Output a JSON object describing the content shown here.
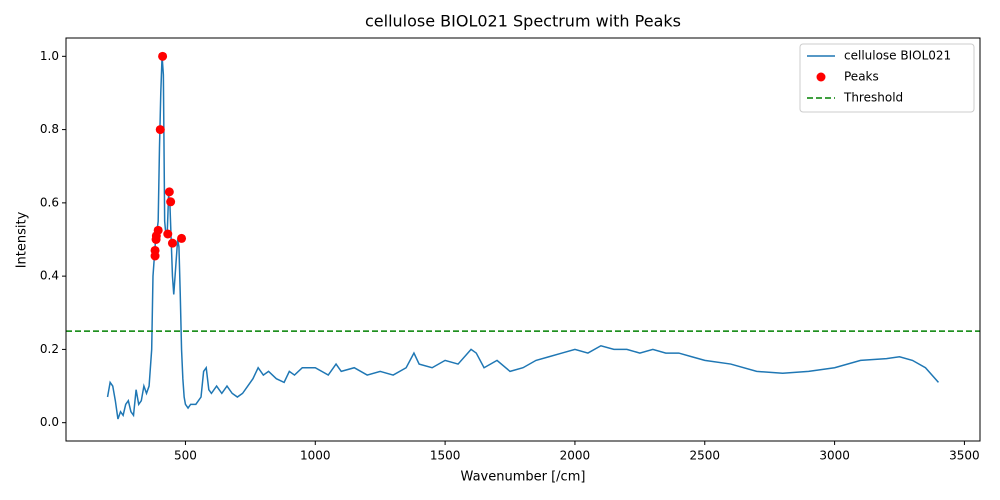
{
  "chart_data": {
    "type": "line",
    "title": "cellulose BIOL021 Spectrum with Peaks",
    "x_label": "Wavenumber [/cm]",
    "y_label": "Intensity",
    "xlim": [
      40,
      3560
    ],
    "ylim": [
      -0.05,
      1.05
    ],
    "xticks": [
      500,
      1000,
      1500,
      2000,
      2500,
      3000,
      3500
    ],
    "yticks": [
      {
        "value": 0,
        "label": "0.0"
      },
      0.2,
      0.4,
      0.6,
      0.8,
      {
        "value": 1,
        "label": "1.0"
      }
    ],
    "legend": "upper right",
    "series": [
      {
        "name": "cellulose BIOL021",
        "type": "line",
        "color": "#1f77b4",
        "x": [
          200,
          210,
          220,
          230,
          240,
          250,
          260,
          270,
          280,
          290,
          300,
          310,
          320,
          330,
          340,
          350,
          360,
          370,
          375,
          380,
          385,
          390,
          395,
          400,
          405,
          410,
          415,
          420,
          425,
          430,
          435,
          440,
          445,
          450,
          455,
          460,
          465,
          470,
          475,
          480,
          485,
          490,
          495,
          500,
          510,
          520,
          540,
          560,
          570,
          580,
          590,
          600,
          620,
          640,
          660,
          680,
          700,
          720,
          740,
          760,
          780,
          800,
          820,
          850,
          880,
          900,
          920,
          950,
          1000,
          1050,
          1080,
          1100,
          1150,
          1200,
          1250,
          1300,
          1350,
          1380,
          1400,
          1450,
          1500,
          1550,
          1600,
          1620,
          1650,
          1700,
          1750,
          1800,
          1850,
          1900,
          1950,
          2000,
          2050,
          2100,
          2150,
          2200,
          2250,
          2300,
          2350,
          2400,
          2450,
          2500,
          2600,
          2700,
          2800,
          2900,
          3000,
          3100,
          3200,
          3250,
          3300,
          3350,
          3400
        ],
        "values": [
          0.07,
          0.11,
          0.1,
          0.06,
          0.01,
          0.03,
          0.02,
          0.05,
          0.06,
          0.03,
          0.02,
          0.09,
          0.05,
          0.06,
          0.1,
          0.08,
          0.1,
          0.2,
          0.4,
          0.45,
          0.5,
          0.52,
          0.55,
          0.75,
          0.9,
          1.0,
          0.95,
          0.55,
          0.51,
          0.52,
          0.62,
          0.6,
          0.5,
          0.4,
          0.35,
          0.4,
          0.45,
          0.5,
          0.48,
          0.35,
          0.2,
          0.12,
          0.07,
          0.05,
          0.04,
          0.05,
          0.05,
          0.07,
          0.14,
          0.15,
          0.09,
          0.08,
          0.1,
          0.08,
          0.1,
          0.08,
          0.07,
          0.08,
          0.1,
          0.12,
          0.15,
          0.13,
          0.14,
          0.12,
          0.11,
          0.14,
          0.13,
          0.15,
          0.15,
          0.13,
          0.16,
          0.14,
          0.15,
          0.13,
          0.14,
          0.13,
          0.15,
          0.19,
          0.16,
          0.15,
          0.17,
          0.16,
          0.2,
          0.19,
          0.15,
          0.17,
          0.14,
          0.15,
          0.17,
          0.18,
          0.19,
          0.2,
          0.19,
          0.21,
          0.2,
          0.2,
          0.19,
          0.2,
          0.19,
          0.19,
          0.18,
          0.17,
          0.16,
          0.14,
          0.135,
          0.14,
          0.15,
          0.17,
          0.175,
          0.18,
          0.17,
          0.15,
          0.11
        ]
      },
      {
        "name": "Peaks",
        "type": "scatter",
        "color": "red",
        "x": [
          383,
          383,
          387,
          388,
          395,
          403,
          412,
          432,
          438,
          443,
          450,
          485
        ],
        "values": [
          0.455,
          0.47,
          0.5,
          0.51,
          0.525,
          0.8,
          1.0,
          0.515,
          0.63,
          0.603,
          0.49,
          0.503
        ]
      },
      {
        "name": "Threshold",
        "type": "hline",
        "color": "green",
        "value": 0.25
      }
    ]
  }
}
